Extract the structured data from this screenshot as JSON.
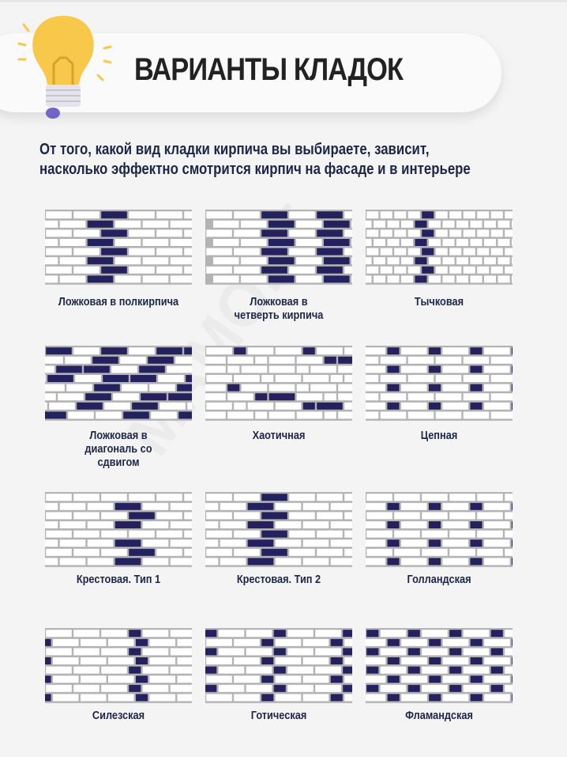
{
  "header": {
    "title": "ВАРИАНТЫ КЛАДОК",
    "subtitle_lines": [
      "От того, какой вид кладки кирпича вы выбираете, зависит,",
      "насколько эффектно смотрится кирпич на фасаде и в интерьере"
    ],
    "icon": "lightbulb-icon"
  },
  "colors": {
    "brick_highlight": "#23225e",
    "brick": "#ffffff",
    "mortar": "#b3b3b5",
    "bulb": "#f8c84a",
    "text": "#1c2646"
  },
  "patterns": [
    {
      "id": "half",
      "label": "Ложковая в полкирпича"
    },
    {
      "id": "quarter",
      "label": "Ложковая в четверть кирпича"
    },
    {
      "id": "header",
      "label": "Тычковая"
    },
    {
      "id": "diagonal",
      "label": "Ложковая в диагональ со сдвигом"
    },
    {
      "id": "chaotic",
      "label": "Хаотичная"
    },
    {
      "id": "chain",
      "label": "Цепная"
    },
    {
      "id": "cross1",
      "label": "Крестовая. Тип 1"
    },
    {
      "id": "cross2",
      "label": "Крестовая. Тип 2"
    },
    {
      "id": "dutch",
      "label": "Голландская"
    },
    {
      "id": "silesian",
      "label": "Силезская"
    },
    {
      "id": "gothic",
      "label": "Готическая"
    },
    {
      "id": "flemish",
      "label": "Фламандская"
    }
  ]
}
